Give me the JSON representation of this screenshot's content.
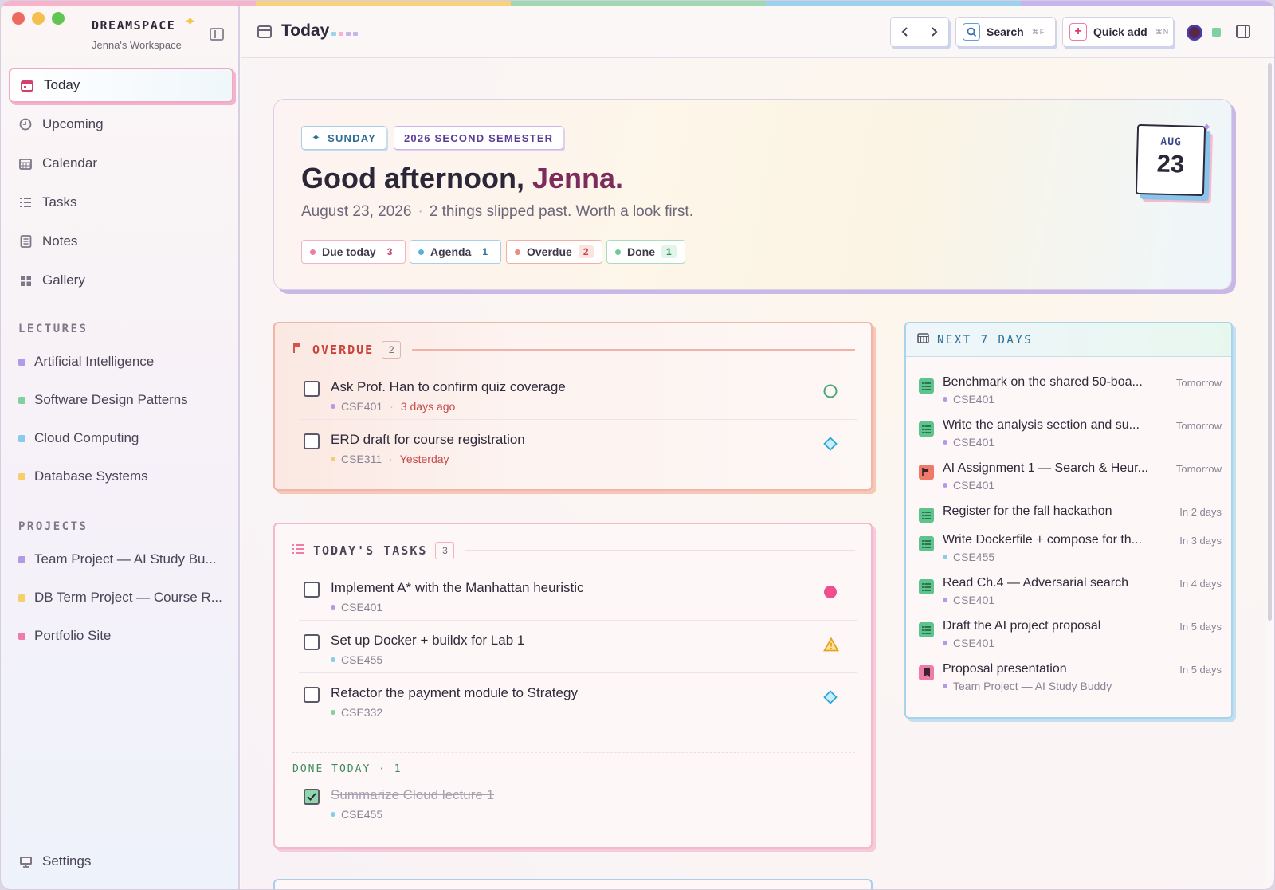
{
  "colors": {
    "rainbow": [
      "#f6b3c9",
      "#f7d37c",
      "#9ed9b2",
      "#9bd3ef",
      "#c6b4ee"
    ],
    "traffic": [
      "#ee6a5f",
      "#f4bf4f",
      "#61c554"
    ],
    "ai": "#b39ae8",
    "sdp": "#7fd1a1",
    "cloud": "#88ccec",
    "db": "#f4cf6a",
    "portfolio": "#ef7ba7"
  },
  "app": {
    "brand": "DREAMSPACE",
    "workspace": "Jenna's Workspace"
  },
  "nav": {
    "items": [
      {
        "label": "Today",
        "icon": "calendar-icon"
      },
      {
        "label": "Upcoming",
        "icon": "clock-icon"
      },
      {
        "label": "Calendar",
        "icon": "calendar-grid-icon"
      },
      {
        "label": "Tasks",
        "icon": "list-icon"
      },
      {
        "label": "Notes",
        "icon": "notebook-icon"
      },
      {
        "label": "Gallery",
        "icon": "grid-icon"
      }
    ]
  },
  "lectures": {
    "label": "LECTURES",
    "items": [
      {
        "label": "Artificial Intelligence"
      },
      {
        "label": "Software Design Patterns"
      },
      {
        "label": "Cloud Computing"
      },
      {
        "label": "Database Systems"
      }
    ]
  },
  "projects": {
    "label": "PROJECTS",
    "items": [
      {
        "label": "Team Project — AI Study Bu..."
      },
      {
        "label": "DB Term Project — Course R..."
      },
      {
        "label": "Portfolio Site"
      }
    ]
  },
  "settings": {
    "label": "Settings"
  },
  "topbar": {
    "title": "Today",
    "search_label": "Search",
    "search_kbd": "⌘F",
    "quick_add_label": "Quick add",
    "quick_add_kbd": "⌘N"
  },
  "hero": {
    "day_chip": "SUNDAY",
    "semester_chip": "2026 SECOND SEMESTER",
    "greeting": "Good afternoon,",
    "name": "Jenna.",
    "date": "August 23, 2026",
    "message": "2 things slipped past. Worth a look first.",
    "month": "AUG",
    "day": "23",
    "pills": [
      {
        "label": "Due today",
        "count": "3"
      },
      {
        "label": "Agenda",
        "count": "1"
      },
      {
        "label": "Overdue",
        "count": "2"
      },
      {
        "label": "Done",
        "count": "1"
      }
    ]
  },
  "overdue": {
    "label": "OVERDUE",
    "count": "2",
    "tasks": [
      {
        "title": "Ask Prof. Han to confirm quiz coverage",
        "course": "CSE401",
        "when": "3 days ago",
        "marker": "circle-outline-icon"
      },
      {
        "title": "ERD draft for course registration",
        "course": "CSE311",
        "when": "Yesterday",
        "marker": "diamond-icon"
      }
    ]
  },
  "today_tasks": {
    "label": "TODAY'S TASKS",
    "count": "3",
    "tasks": [
      {
        "title": "Implement A* with the Manhattan heuristic",
        "course": "CSE401",
        "marker": "pink-dot-icon"
      },
      {
        "title": "Set up Docker + buildx for Lab 1",
        "course": "CSE455",
        "marker": "warning-icon"
      },
      {
        "title": "Refactor the payment module to Strategy",
        "course": "CSE332",
        "marker": "diamond-icon"
      }
    ],
    "done_label": "DONE TODAY · 1",
    "done_tasks": [
      {
        "title": "Summarize Cloud lecture 1",
        "course": "CSE455"
      }
    ]
  },
  "next7": {
    "label": "NEXT 7 DAYS",
    "items": [
      {
        "title": "Benchmark on the shared 50-boa...",
        "course": "CSE401",
        "when": "Tomorrow",
        "icon": "task-list-icon"
      },
      {
        "title": "Write the analysis section and su...",
        "course": "CSE401",
        "when": "Tomorrow",
        "icon": "task-list-icon"
      },
      {
        "title": "AI Assignment 1 — Search & Heur...",
        "course": "CSE401",
        "when": "Tomorrow",
        "icon": "flag-icon"
      },
      {
        "title": "Register for the fall hackathon",
        "course": "",
        "when": "In 2 days",
        "icon": "task-list-icon"
      },
      {
        "title": "Write Dockerfile + compose for th...",
        "course": "CSE455",
        "when": "In 3 days",
        "icon": "task-list-icon"
      },
      {
        "title": "Read Ch.4 — Adversarial search",
        "course": "CSE401",
        "when": "In 4 days",
        "icon": "task-list-icon"
      },
      {
        "title": "Draft the AI project proposal",
        "course": "CSE401",
        "when": "In 5 days",
        "icon": "task-list-icon"
      },
      {
        "title": "Proposal presentation",
        "course": "Team Project — AI Study Buddy",
        "when": "In 5 days",
        "icon": "bookmark-icon"
      }
    ]
  }
}
